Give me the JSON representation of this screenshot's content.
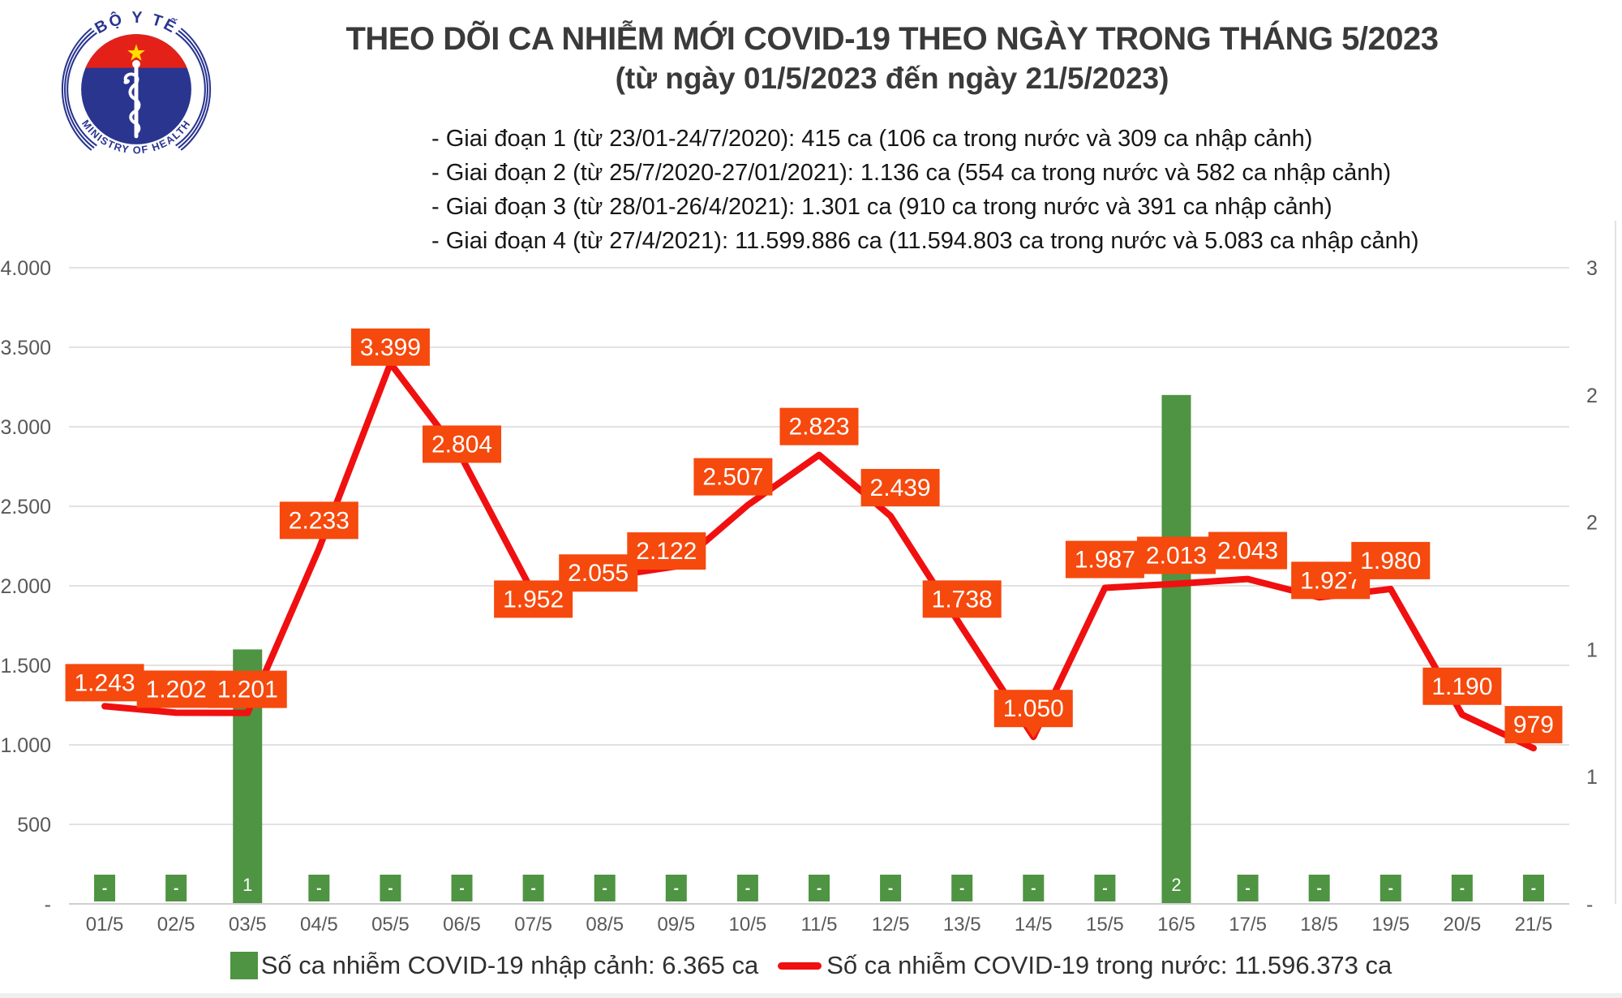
{
  "logo": {
    "top_text": "BỘ Y TẾ",
    "bottom_text": "MINISTRY OF HEALTH",
    "red": "#E32119",
    "blue": "#2A3590",
    "star_yellow": "#FFDE00"
  },
  "title": "THEO DÕI CA NHIỄM MỚI COVID-19 THEO NGÀY TRONG THÁNG 5/2023",
  "subtitle": "(từ ngày 01/5/2023 đến ngày 21/5/2023)",
  "info_lines": [
    "- Giai đoạn 1 (từ 23/01-24/7/2020): 415 ca (106 ca trong nước và 309 ca nhập cảnh)",
    "- Giai đoạn 2 (từ 25/7/2020-27/01/2021): 1.136 ca (554 ca trong nước và 582 ca nhập cảnh)",
    "- Giai đoạn 3 (từ 28/01-26/4/2021): 1.301 ca (910 ca trong nước và 391 ca nhập cảnh)",
    "- Giai đoạn 4 (từ 27/4/2021): 11.599.886 ca (11.594.803 ca trong nước và 5.083 ca nhập cảnh)"
  ],
  "legend": [
    {
      "type": "bar",
      "color": "#4E9442",
      "label": "Số ca nhiễm COVID-19 nhập cảnh: 6.365 ca"
    },
    {
      "type": "line",
      "color": "#F01010",
      "label": "Số ca nhiễm COVID-19 trong nước: 11.596.373 ca"
    }
  ],
  "chart_data": {
    "type": "composite",
    "categories": [
      "01/5",
      "02/5",
      "03/5",
      "04/5",
      "05/5",
      "06/5",
      "07/5",
      "08/5",
      "09/5",
      "10/5",
      "11/5",
      "12/5",
      "13/5",
      "14/5",
      "15/5",
      "16/5",
      "17/5",
      "18/5",
      "19/5",
      "20/5",
      "21/5"
    ],
    "series": [
      {
        "name": "Số ca nhiễm COVID-19 nhập cảnh",
        "type": "bar",
        "axis": "right",
        "color": "#4E9442",
        "zero_label": "-",
        "values": [
          0,
          0,
          1,
          0,
          0,
          0,
          0,
          0,
          0,
          0,
          0,
          0,
          0,
          0,
          0,
          2,
          0,
          0,
          0,
          0,
          0
        ]
      },
      {
        "name": "Số ca nhiễm COVID-19 trong nước",
        "type": "line",
        "axis": "left",
        "color": "#F01010",
        "label_bg": "#F6490D",
        "label_text_color": "#FFFFFF",
        "values": [
          1243,
          1202,
          1201,
          2233,
          3399,
          2804,
          1952,
          2055,
          2122,
          2507,
          2823,
          2439,
          1738,
          1050,
          1987,
          2013,
          2043,
          1927,
          1980,
          1190,
          979
        ]
      }
    ],
    "left_axis": {
      "min": 0,
      "max": 4000,
      "step": 500,
      "labels": [
        "-",
        "500",
        "1.000",
        "1.500",
        "2.000",
        "2.500",
        "3.000",
        "3.500",
        "4.000"
      ]
    },
    "right_axis": {
      "min": 0,
      "max": 2.5,
      "step": 0.5,
      "labels": [
        "-",
        "1",
        "1",
        "2",
        "2",
        "3"
      ]
    },
    "grid": true,
    "grid_color": "#D9D9D9",
    "axis_text_color": "#595959",
    "legend_position": "bottom",
    "label_dx": [
      0,
      0,
      0,
      0,
      0,
      0,
      0,
      -8,
      -12,
      -18,
      0,
      12,
      0,
      0,
      0,
      0,
      0,
      14,
      0,
      0,
      0
    ],
    "label_dy": [
      6,
      6,
      6,
      0,
      15,
      18,
      42,
      30,
      16,
      0,
      0,
      0,
      0,
      0,
      0,
      0,
      0,
      14,
      0,
      0,
      6
    ],
    "pointer_index": 13
  }
}
